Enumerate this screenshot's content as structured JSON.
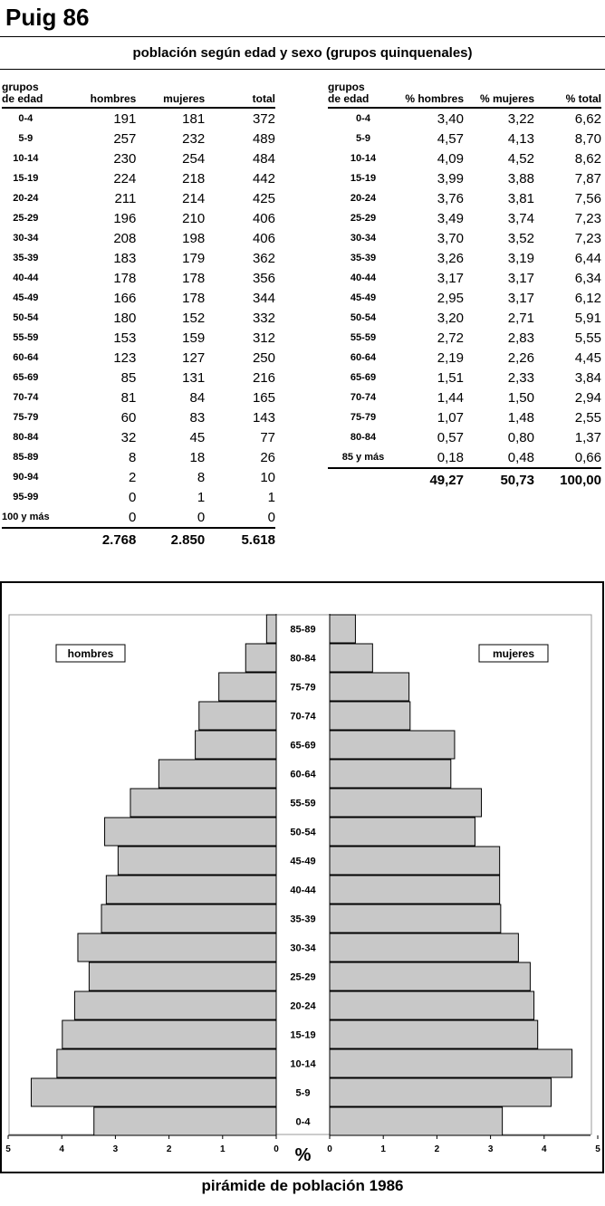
{
  "page_title": "Puig 86",
  "table_title": "población según edad y sexo (grupos quinquenales)",
  "left_table": {
    "headers": [
      "grupos de edad",
      "hombres",
      "mujeres",
      "total"
    ],
    "rows": [
      [
        "0-4",
        "191",
        "181",
        "372"
      ],
      [
        "5-9",
        "257",
        "232",
        "489"
      ],
      [
        "10-14",
        "230",
        "254",
        "484"
      ],
      [
        "15-19",
        "224",
        "218",
        "442"
      ],
      [
        "20-24",
        "211",
        "214",
        "425"
      ],
      [
        "25-29",
        "196",
        "210",
        "406"
      ],
      [
        "30-34",
        "208",
        "198",
        "406"
      ],
      [
        "35-39",
        "183",
        "179",
        "362"
      ],
      [
        "40-44",
        "178",
        "178",
        "356"
      ],
      [
        "45-49",
        "166",
        "178",
        "344"
      ],
      [
        "50-54",
        "180",
        "152",
        "332"
      ],
      [
        "55-59",
        "153",
        "159",
        "312"
      ],
      [
        "60-64",
        "123",
        "127",
        "250"
      ],
      [
        "65-69",
        "85",
        "131",
        "216"
      ],
      [
        "70-74",
        "81",
        "84",
        "165"
      ],
      [
        "75-79",
        "60",
        "83",
        "143"
      ],
      [
        "80-84",
        "32",
        "45",
        "77"
      ],
      [
        "85-89",
        "8",
        "18",
        "26"
      ],
      [
        "90-94",
        "2",
        "8",
        "10"
      ],
      [
        "95-99",
        "0",
        "1",
        "1"
      ],
      [
        "100 y más",
        "0",
        "0",
        "0"
      ]
    ],
    "totals": [
      "",
      "2.768",
      "2.850",
      "5.618"
    ]
  },
  "right_table": {
    "headers": [
      "grupos de edad",
      "% hombres",
      "% mujeres",
      "% total"
    ],
    "rows": [
      [
        "0-4",
        "3,40",
        "3,22",
        "6,62"
      ],
      [
        "5-9",
        "4,57",
        "4,13",
        "8,70"
      ],
      [
        "10-14",
        "4,09",
        "4,52",
        "8,62"
      ],
      [
        "15-19",
        "3,99",
        "3,88",
        "7,87"
      ],
      [
        "20-24",
        "3,76",
        "3,81",
        "7,56"
      ],
      [
        "25-29",
        "3,49",
        "3,74",
        "7,23"
      ],
      [
        "30-34",
        "3,70",
        "3,52",
        "7,23"
      ],
      [
        "35-39",
        "3,26",
        "3,19",
        "6,44"
      ],
      [
        "40-44",
        "3,17",
        "3,17",
        "6,34"
      ],
      [
        "45-49",
        "2,95",
        "3,17",
        "6,12"
      ],
      [
        "50-54",
        "3,20",
        "2,71",
        "5,91"
      ],
      [
        "55-59",
        "2,72",
        "2,83",
        "5,55"
      ],
      [
        "60-64",
        "2,19",
        "2,26",
        "4,45"
      ],
      [
        "65-69",
        "1,51",
        "2,33",
        "3,84"
      ],
      [
        "70-74",
        "1,44",
        "1,50",
        "2,94"
      ],
      [
        "75-79",
        "1,07",
        "1,48",
        "2,55"
      ],
      [
        "80-84",
        "0,57",
        "0,80",
        "1,37"
      ],
      [
        "85 y más",
        "0,18",
        "0,48",
        "0,66"
      ]
    ],
    "totals": [
      "",
      "49,27",
      "50,73",
      "100,00"
    ]
  },
  "chart_data": {
    "type": "bar",
    "subtype": "population-pyramid",
    "title": "pirámide de población 1986",
    "categories": [
      "0-4",
      "5-9",
      "10-14",
      "15-19",
      "20-24",
      "25-29",
      "30-34",
      "35-39",
      "40-44",
      "45-49",
      "50-54",
      "55-59",
      "60-64",
      "65-69",
      "70-74",
      "75-79",
      "80-84",
      "85-89"
    ],
    "series": [
      {
        "name": "hombres",
        "side": "left",
        "values": [
          3.4,
          4.57,
          4.09,
          3.99,
          3.76,
          3.49,
          3.7,
          3.26,
          3.17,
          2.95,
          3.2,
          2.72,
          2.19,
          1.51,
          1.44,
          1.07,
          0.57,
          0.18
        ]
      },
      {
        "name": "mujeres",
        "side": "right",
        "values": [
          3.22,
          4.13,
          4.52,
          3.88,
          3.81,
          3.74,
          3.52,
          3.19,
          3.17,
          3.17,
          2.71,
          2.83,
          2.26,
          2.33,
          1.5,
          1.48,
          0.8,
          0.48
        ]
      }
    ],
    "xlabel": "%",
    "xlim": [
      0,
      5
    ],
    "xticks": [
      "0",
      "1",
      "2",
      "3",
      "4",
      "5"
    ],
    "bar_color": "#c8c8c8",
    "legend_placement": "top"
  }
}
